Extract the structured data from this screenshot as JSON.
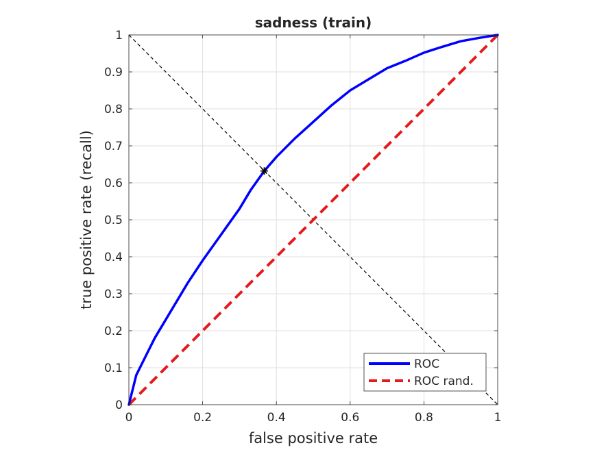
{
  "chart_data": {
    "type": "line",
    "title": "sadness (train)",
    "xlabel": "false positive rate",
    "ylabel": "true positive rate (recall)",
    "xlim": [
      0,
      1
    ],
    "ylim": [
      0,
      1
    ],
    "grid": true,
    "x_ticks": [
      0,
      0.2,
      0.4,
      0.6,
      0.8,
      1
    ],
    "x_tick_labels": [
      "0",
      "0.2",
      "0.4",
      "0.6",
      "0.8",
      "1"
    ],
    "y_ticks": [
      0,
      0.1,
      0.2,
      0.3,
      0.4,
      0.5,
      0.6,
      0.7,
      0.8,
      0.9,
      1
    ],
    "y_tick_labels": [
      "0",
      "0.1",
      "0.2",
      "0.3",
      "0.4",
      "0.5",
      "0.6",
      "0.7",
      "0.8",
      "0.9",
      "1"
    ],
    "legend_position": "bottom-right",
    "series": [
      {
        "name": "ROC",
        "color": "#0000ff",
        "style": "solid",
        "x": [
          0,
          0.005,
          0.01,
          0.02,
          0.03,
          0.05,
          0.07,
          0.1,
          0.13,
          0.16,
          0.2,
          0.25,
          0.3,
          0.33,
          0.367,
          0.4,
          0.45,
          0.5,
          0.55,
          0.6,
          0.65,
          0.7,
          0.75,
          0.8,
          0.85,
          0.9,
          0.95,
          1
        ],
        "y": [
          0,
          0.02,
          0.04,
          0.08,
          0.1,
          0.14,
          0.18,
          0.23,
          0.28,
          0.33,
          0.39,
          0.46,
          0.53,
          0.58,
          0.632,
          0.67,
          0.72,
          0.765,
          0.81,
          0.85,
          0.88,
          0.91,
          0.93,
          0.952,
          0.968,
          0.983,
          0.992,
          1
        ]
      },
      {
        "name": "ROC rand.",
        "color": "#e41a1c",
        "style": "dashed",
        "x": [
          0,
          1
        ],
        "y": [
          0,
          1
        ]
      }
    ],
    "reference_line": {
      "color": "#000000",
      "style": "dashed",
      "x": [
        0,
        1
      ],
      "y": [
        1,
        0
      ]
    },
    "marker": {
      "symbol": "asterisk",
      "x": 0.367,
      "y": 0.632,
      "color": "#000000"
    }
  }
}
